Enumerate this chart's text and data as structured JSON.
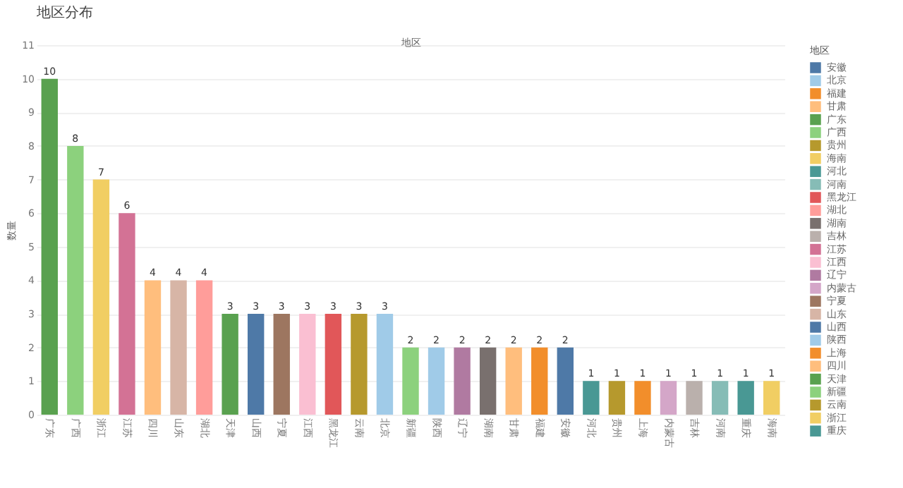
{
  "chart_data": {
    "type": "bar",
    "title": "地区分布",
    "xlabel": "地区",
    "ylabel": "数量",
    "legend_title": "地区",
    "stacked": true,
    "categories": [
      "广东",
      "广西",
      "浙江",
      "江苏",
      "四川",
      "山东",
      "湖北",
      "天津",
      "山西",
      "宁夏",
      "江西",
      "黑龙江",
      "云南",
      "北京",
      "新疆",
      "陕西",
      "辽宁",
      "湖南",
      "甘肃",
      "福建",
      "安徽",
      "河北",
      "贵州",
      "上海",
      "内蒙古",
      "吉林",
      "河南",
      "重庆",
      "海南"
    ],
    "series": [
      {
        "name": "安徽",
        "color": "#4e79a7",
        "values": [
          null,
          null,
          null,
          null,
          null,
          null,
          null,
          null,
          null,
          null,
          null,
          null,
          null,
          null,
          null,
          null,
          null,
          null,
          null,
          null,
          2,
          null,
          null,
          null,
          null,
          null,
          null,
          null,
          null
        ]
      },
      {
        "name": "北京",
        "color": "#a0cbe8",
        "values": [
          null,
          null,
          null,
          null,
          null,
          null,
          null,
          null,
          null,
          null,
          null,
          null,
          null,
          3,
          null,
          null,
          null,
          null,
          null,
          null,
          null,
          null,
          null,
          null,
          null,
          null,
          null,
          null,
          null
        ]
      },
      {
        "name": "福建",
        "color": "#f28e2b",
        "values": [
          null,
          null,
          null,
          null,
          null,
          null,
          null,
          null,
          null,
          null,
          null,
          null,
          null,
          null,
          null,
          null,
          null,
          null,
          null,
          2,
          null,
          null,
          null,
          null,
          null,
          null,
          null,
          null,
          null
        ]
      },
      {
        "name": "甘肃",
        "color": "#ffbe7d",
        "values": [
          null,
          null,
          null,
          null,
          null,
          null,
          null,
          null,
          null,
          null,
          null,
          null,
          null,
          null,
          null,
          null,
          null,
          null,
          2,
          null,
          null,
          null,
          null,
          null,
          null,
          null,
          null,
          null,
          null
        ]
      },
      {
        "name": "广东",
        "color": "#59a14f",
        "values": [
          10,
          null,
          null,
          null,
          null,
          null,
          null,
          null,
          null,
          null,
          null,
          null,
          null,
          null,
          null,
          null,
          null,
          null,
          null,
          null,
          null,
          null,
          null,
          null,
          null,
          null,
          null,
          null,
          null
        ]
      },
      {
        "name": "广西",
        "color": "#8cd17d",
        "values": [
          null,
          8,
          null,
          null,
          null,
          null,
          null,
          null,
          null,
          null,
          null,
          null,
          null,
          null,
          null,
          null,
          null,
          null,
          null,
          null,
          null,
          null,
          null,
          null,
          null,
          null,
          null,
          null,
          null
        ]
      },
      {
        "name": "贵州",
        "color": "#b6992d",
        "values": [
          null,
          null,
          null,
          null,
          null,
          null,
          null,
          null,
          null,
          null,
          null,
          null,
          null,
          null,
          null,
          null,
          null,
          null,
          null,
          null,
          null,
          null,
          1,
          null,
          null,
          null,
          null,
          null,
          null
        ]
      },
      {
        "name": "海南",
        "color": "#f1ce63",
        "values": [
          null,
          null,
          null,
          null,
          null,
          null,
          null,
          null,
          null,
          null,
          null,
          null,
          null,
          null,
          null,
          null,
          null,
          null,
          null,
          null,
          null,
          null,
          null,
          null,
          null,
          null,
          null,
          null,
          1
        ]
      },
      {
        "name": "河北",
        "color": "#499894",
        "values": [
          null,
          null,
          null,
          null,
          null,
          null,
          null,
          null,
          null,
          null,
          null,
          null,
          null,
          null,
          null,
          null,
          null,
          null,
          null,
          null,
          null,
          1,
          null,
          null,
          null,
          null,
          null,
          null,
          null
        ]
      },
      {
        "name": "河南",
        "color": "#86bcb6",
        "values": [
          null,
          null,
          null,
          null,
          null,
          null,
          null,
          null,
          null,
          null,
          null,
          null,
          null,
          null,
          null,
          null,
          null,
          null,
          null,
          null,
          null,
          null,
          null,
          null,
          null,
          null,
          1,
          null,
          null
        ]
      },
      {
        "name": "黑龙江",
        "color": "#e15759",
        "values": [
          null,
          null,
          null,
          null,
          null,
          null,
          null,
          null,
          null,
          null,
          null,
          3,
          null,
          null,
          null,
          null,
          null,
          null,
          null,
          null,
          null,
          null,
          null,
          null,
          null,
          null,
          null,
          null,
          null
        ]
      },
      {
        "name": "湖北",
        "color": "#ff9d9a",
        "values": [
          null,
          null,
          null,
          null,
          null,
          null,
          4,
          null,
          null,
          null,
          null,
          null,
          null,
          null,
          null,
          null,
          null,
          null,
          null,
          null,
          null,
          null,
          null,
          null,
          null,
          null,
          null,
          null,
          null
        ]
      },
      {
        "name": "湖南",
        "color": "#79706e",
        "values": [
          null,
          null,
          null,
          null,
          null,
          null,
          null,
          null,
          null,
          null,
          null,
          null,
          null,
          null,
          null,
          null,
          null,
          2,
          null,
          null,
          null,
          null,
          null,
          null,
          null,
          null,
          null,
          null,
          null
        ]
      },
      {
        "name": "吉林",
        "color": "#bab0ac",
        "values": [
          null,
          null,
          null,
          null,
          null,
          null,
          null,
          null,
          null,
          null,
          null,
          null,
          null,
          null,
          null,
          null,
          null,
          null,
          null,
          null,
          null,
          null,
          null,
          null,
          null,
          1,
          null,
          null,
          null
        ]
      },
      {
        "name": "江苏",
        "color": "#d37295",
        "values": [
          null,
          null,
          null,
          6,
          null,
          null,
          null,
          null,
          null,
          null,
          null,
          null,
          null,
          null,
          null,
          null,
          null,
          null,
          null,
          null,
          null,
          null,
          null,
          null,
          null,
          null,
          null,
          null,
          null
        ]
      },
      {
        "name": "江西",
        "color": "#fabfd2",
        "values": [
          null,
          null,
          null,
          null,
          null,
          null,
          null,
          null,
          null,
          null,
          3,
          null,
          null,
          null,
          null,
          null,
          null,
          null,
          null,
          null,
          null,
          null,
          null,
          null,
          null,
          null,
          null,
          null,
          null
        ]
      },
      {
        "name": "辽宁",
        "color": "#b07aa1",
        "values": [
          null,
          null,
          null,
          null,
          null,
          null,
          null,
          null,
          null,
          null,
          null,
          null,
          null,
          null,
          null,
          null,
          2,
          null,
          null,
          null,
          null,
          null,
          null,
          null,
          null,
          null,
          null,
          null,
          null
        ]
      },
      {
        "name": "内蒙古",
        "color": "#d4a6c8",
        "values": [
          null,
          null,
          null,
          null,
          null,
          null,
          null,
          null,
          null,
          null,
          null,
          null,
          null,
          null,
          null,
          null,
          null,
          null,
          null,
          null,
          null,
          null,
          null,
          null,
          1,
          null,
          null,
          null,
          null
        ]
      },
      {
        "name": "宁夏",
        "color": "#9d7660",
        "values": [
          null,
          null,
          null,
          null,
          null,
          null,
          null,
          null,
          null,
          3,
          null,
          null,
          null,
          null,
          null,
          null,
          null,
          null,
          null,
          null,
          null,
          null,
          null,
          null,
          null,
          null,
          null,
          null,
          null
        ]
      },
      {
        "name": "山东",
        "color": "#d7b5a6",
        "values": [
          null,
          null,
          null,
          null,
          null,
          4,
          null,
          null,
          null,
          null,
          null,
          null,
          null,
          null,
          null,
          null,
          null,
          null,
          null,
          null,
          null,
          null,
          null,
          null,
          null,
          null,
          null,
          null,
          null
        ]
      },
      {
        "name": "山西",
        "color": "#4e79a7",
        "values": [
          null,
          null,
          null,
          null,
          null,
          null,
          null,
          null,
          3,
          null,
          null,
          null,
          null,
          null,
          null,
          null,
          null,
          null,
          null,
          null,
          null,
          null,
          null,
          null,
          null,
          null,
          null,
          null,
          null
        ]
      },
      {
        "name": "陕西",
        "color": "#a0cbe8",
        "values": [
          null,
          null,
          null,
          null,
          null,
          null,
          null,
          null,
          null,
          null,
          null,
          null,
          null,
          null,
          null,
          2,
          null,
          null,
          null,
          null,
          null,
          null,
          null,
          null,
          null,
          null,
          null,
          null,
          null
        ]
      },
      {
        "name": "上海",
        "color": "#f28e2b",
        "values": [
          null,
          null,
          null,
          null,
          null,
          null,
          null,
          null,
          null,
          null,
          null,
          null,
          null,
          null,
          null,
          null,
          null,
          null,
          null,
          null,
          null,
          null,
          null,
          1,
          null,
          null,
          null,
          null,
          null
        ]
      },
      {
        "name": "四川",
        "color": "#ffbe7d",
        "values": [
          null,
          null,
          null,
          null,
          4,
          null,
          null,
          null,
          null,
          null,
          null,
          null,
          null,
          null,
          null,
          null,
          null,
          null,
          null,
          null,
          null,
          null,
          null,
          null,
          null,
          null,
          null,
          null,
          null
        ]
      },
      {
        "name": "天津",
        "color": "#59a14f",
        "values": [
          null,
          null,
          null,
          null,
          null,
          null,
          null,
          3,
          null,
          null,
          null,
          null,
          null,
          null,
          null,
          null,
          null,
          null,
          null,
          null,
          null,
          null,
          null,
          null,
          null,
          null,
          null,
          null,
          null
        ]
      },
      {
        "name": "新疆",
        "color": "#8cd17d",
        "values": [
          null,
          null,
          null,
          null,
          null,
          null,
          null,
          null,
          null,
          null,
          null,
          null,
          null,
          null,
          2,
          null,
          null,
          null,
          null,
          null,
          null,
          null,
          null,
          null,
          null,
          null,
          null,
          null,
          null
        ]
      },
      {
        "name": "云南",
        "color": "#b6992d",
        "values": [
          null,
          null,
          null,
          null,
          null,
          null,
          null,
          null,
          null,
          null,
          null,
          null,
          3,
          null,
          null,
          null,
          null,
          null,
          null,
          null,
          null,
          null,
          null,
          null,
          null,
          null,
          null,
          null,
          null
        ]
      },
      {
        "name": "浙江",
        "color": "#f1ce63",
        "values": [
          null,
          null,
          7,
          null,
          null,
          null,
          null,
          null,
          null,
          null,
          null,
          null,
          null,
          null,
          null,
          null,
          null,
          null,
          null,
          null,
          null,
          null,
          null,
          null,
          null,
          null,
          null,
          null,
          null
        ]
      },
      {
        "name": "重庆",
        "color": "#499894",
        "values": [
          null,
          null,
          null,
          null,
          null,
          null,
          null,
          null,
          null,
          null,
          null,
          null,
          null,
          null,
          null,
          null,
          null,
          null,
          null,
          null,
          null,
          null,
          null,
          null,
          null,
          null,
          null,
          1,
          null
        ]
      }
    ],
    "ylim": [
      0,
      11
    ],
    "yticks": [
      0,
      1,
      2,
      3,
      4,
      5,
      6,
      7,
      8,
      9,
      10,
      11
    ],
    "grid": "y",
    "data_labels": true,
    "legend": "right"
  }
}
